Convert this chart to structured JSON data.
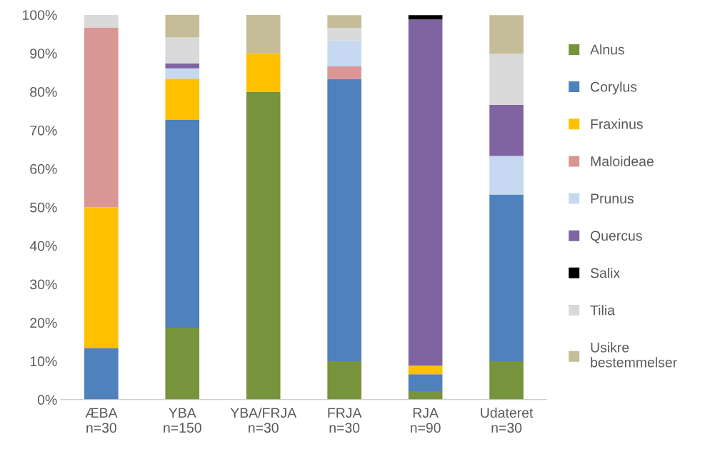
{
  "chart_data": {
    "type": "bar",
    "stacked": true,
    "categories": [
      "ÆBA\nn=30",
      "YBA\nn=150",
      "YBA/FRJA\nn=30",
      "FRJA\nn=30",
      "RJA\nn=90",
      "Udateret\nn=30"
    ],
    "series": [
      {
        "name": "Alnus",
        "color": "#77933c",
        "values": [
          0,
          18.7,
          80,
          10,
          2.2,
          10
        ]
      },
      {
        "name": "Corylus",
        "color": "#4f81bd",
        "values": [
          13.3,
          54,
          0,
          73.3,
          4.4,
          43.3
        ]
      },
      {
        "name": "Fraxinus",
        "color": "#ffc000",
        "values": [
          36.7,
          10.7,
          10,
          0,
          2.2,
          0
        ]
      },
      {
        "name": "Maloideae",
        "color": "#d99694",
        "values": [
          46.7,
          0,
          0,
          3.3,
          0,
          0
        ]
      },
      {
        "name": "Prunus",
        "color": "#c6d9f1",
        "values": [
          0,
          2.7,
          0,
          6.7,
          0,
          10
        ]
      },
      {
        "name": "Quercus",
        "color": "#8064a2",
        "values": [
          0,
          1.3,
          0,
          0,
          90,
          13.3
        ]
      },
      {
        "name": "Salix",
        "color": "#000000",
        "values": [
          0,
          0,
          0,
          0,
          1.1,
          0
        ]
      },
      {
        "name": "Tilia",
        "color": "#d9d9d9",
        "values": [
          3.3,
          6.7,
          0,
          3.3,
          0,
          13.3
        ]
      },
      {
        "name": "Usikre\nbestemmelser",
        "color": "#c4bd97",
        "values": [
          0,
          6,
          10,
          3.3,
          0,
          10
        ]
      }
    ],
    "ylim": [
      0,
      100
    ],
    "yticks": [
      {
        "value": 0,
        "label": "0%"
      },
      {
        "value": 10,
        "label": "10%"
      },
      {
        "value": 20,
        "label": "20%"
      },
      {
        "value": 30,
        "label": "30%"
      },
      {
        "value": 40,
        "label": "40%"
      },
      {
        "value": 50,
        "label": "50%"
      },
      {
        "value": 60,
        "label": "60%"
      },
      {
        "value": 70,
        "label": "70%"
      },
      {
        "value": 80,
        "label": "80%"
      },
      {
        "value": 90,
        "label": "90%"
      },
      {
        "value": 100,
        "label": "100%"
      }
    ],
    "legend": "right",
    "grid": false
  }
}
